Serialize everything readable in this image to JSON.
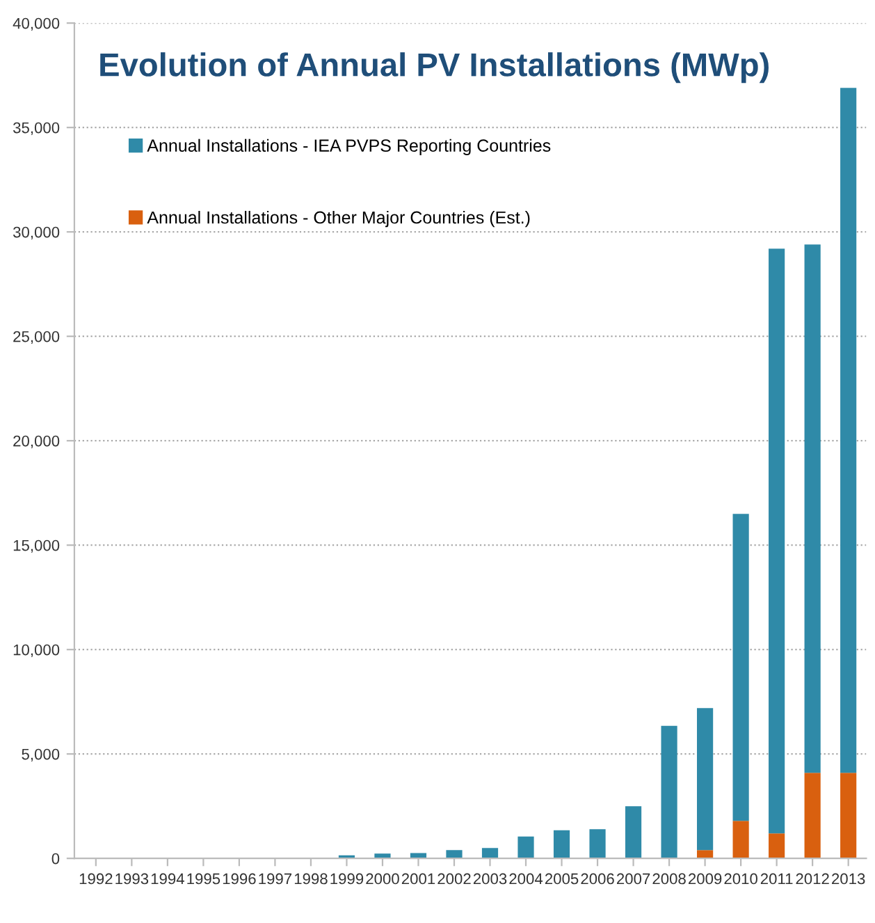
{
  "chart_data": {
    "type": "bar",
    "title": "Evolution of Annual PV Installations (MWp)",
    "stacked": true,
    "categories": [
      "1992",
      "1993",
      "1994",
      "1995",
      "1996",
      "1997",
      "1998",
      "1999",
      "2000",
      "2001",
      "2002",
      "2003",
      "2004",
      "2005",
      "2006",
      "2007",
      "2008",
      "2009",
      "2010",
      "2011",
      "2012",
      "2013"
    ],
    "series": [
      {
        "name": "Annual Installations - Other Major Countries (Est.)",
        "color": "#d9600f",
        "values": [
          0,
          0,
          0,
          0,
          0,
          0,
          0,
          0,
          0,
          0,
          0,
          0,
          0,
          0,
          0,
          0,
          null,
          400,
          1800,
          1200,
          4100,
          4100
        ]
      },
      {
        "name": "Annual Installations - IEA PVPS Reporting Countries",
        "color": "#2f8aa8",
        "values": [
          null,
          null,
          null,
          null,
          null,
          null,
          null,
          150,
          230,
          260,
          400,
          500,
          1050,
          1350,
          1400,
          2500,
          6350,
          6800,
          14700,
          28000,
          25300,
          32800
        ]
      }
    ],
    "ylim": [
      0,
      40000
    ],
    "yticks": [
      {
        "value": 0,
        "label": "0"
      },
      {
        "value": 5000,
        "label": "5,000"
      },
      {
        "value": 10000,
        "label": "10,000"
      },
      {
        "value": 15000,
        "label": "15,000"
      },
      {
        "value": 20000,
        "label": "20,000"
      },
      {
        "value": 25000,
        "label": "25,000"
      },
      {
        "value": 30000,
        "label": "30,000"
      },
      {
        "value": 35000,
        "label": "35,000"
      },
      {
        "value": 40000,
        "label": "40,000"
      }
    ],
    "grid": "y",
    "legend": "top left"
  }
}
